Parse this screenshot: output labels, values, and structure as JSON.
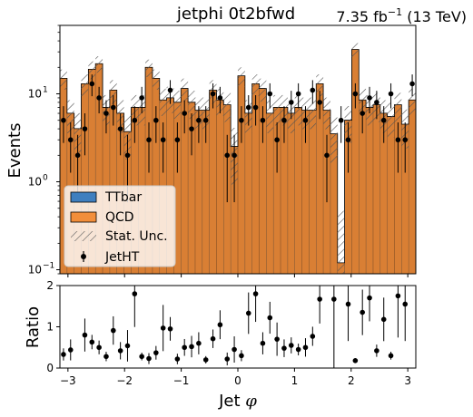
{
  "chart_data": [
    {
      "type": "histogram-stack",
      "title": "jetphi  0t2bfwd",
      "lumi_text": "7.35 fb",
      "lumi_sup": "−1",
      "lumi_tail": " (13 TeV)",
      "ylabel": "Events",
      "yscale": "log",
      "ylim": [
        0.09,
        60
      ],
      "ytick_labels": [
        "10",
        "10",
        "10"
      ],
      "ytick_exps": [
        "−1",
        "0",
        "1"
      ],
      "xlim": [
        -3.14159,
        3.14159
      ],
      "bin_edges": [
        -3.14159,
        -3.01593,
        -2.89027,
        -2.7646,
        -2.63894,
        -2.51327,
        -2.38761,
        -2.26195,
        -2.13628,
        -2.01062,
        -1.88496,
        -1.75929,
        -1.63363,
        -1.50796,
        -1.3823,
        -1.25664,
        -1.13097,
        -1.00531,
        -0.87965,
        -0.75398,
        -0.62832,
        -0.50265,
        -0.37699,
        -0.25133,
        -0.12566,
        0.0,
        0.12566,
        0.25133,
        0.37699,
        0.50265,
        0.62832,
        0.75398,
        0.87965,
        1.00531,
        1.13097,
        1.25664,
        1.3823,
        1.50796,
        1.63363,
        1.75929,
        1.88496,
        2.01062,
        2.13628,
        2.26195,
        2.38761,
        2.51327,
        2.63894,
        2.7646,
        2.89027,
        3.01593,
        3.14159
      ],
      "series": [
        {
          "name": "TTbar",
          "color": "#3f7fbf",
          "values": [
            0.02,
            0.02,
            0.02,
            0.02,
            0.02,
            0.02,
            0.02,
            0.02,
            0.02,
            0.02,
            0.02,
            0.02,
            0.02,
            0.02,
            0.02,
            0.02,
            0.02,
            0.02,
            0.02,
            0.02,
            0.02,
            0.02,
            0.02,
            0.02,
            0.02,
            0.02,
            0.02,
            0.02,
            0.02,
            0.02,
            0.02,
            0.02,
            0.02,
            0.02,
            0.02,
            0.02,
            0.02,
            0.02,
            0.02,
            0.02,
            0.02,
            0.02,
            0.02,
            0.02,
            0.02,
            0.02,
            0.02,
            0.02,
            0.02,
            0.02
          ]
        },
        {
          "name": "QCD",
          "color": "#d97f34",
          "values": [
            15,
            6,
            4,
            13,
            19,
            22,
            7,
            11,
            6,
            3.7,
            7,
            7,
            20,
            15,
            8.5,
            9,
            8,
            11.5,
            8,
            6.5,
            6.5,
            11,
            8.5,
            7.5,
            2.5,
            16,
            6,
            13,
            11.5,
            6,
            7,
            7,
            6,
            7,
            6.5,
            6.5,
            13,
            6.5,
            3.5,
            0.1,
            5,
            32,
            8.5,
            7,
            7.5,
            6,
            5.5,
            7.5,
            4.5,
            8.5
          ]
        }
      ],
      "stat_unc_label": "Stat. Unc.",
      "data_series": {
        "name": "JetHT",
        "values": [
          5,
          3,
          2,
          4,
          13,
          9,
          6,
          7,
          4,
          2,
          5,
          9,
          3,
          5,
          3,
          11,
          3,
          6,
          4,
          5,
          5,
          10,
          9,
          2,
          2,
          5,
          7,
          7,
          5,
          10,
          3,
          5,
          8,
          10,
          5,
          11,
          8,
          2,
          0,
          5,
          3,
          10,
          6,
          9,
          8,
          5,
          10,
          3,
          3,
          13
        ]
      },
      "legend_entries": [
        "TTbar",
        "QCD",
        "Stat. Unc.",
        "JetHT"
      ],
      "legend_position": "lower-left"
    },
    {
      "type": "scatter-errorbar",
      "ylabel": "Ratio",
      "ylim": [
        0,
        2
      ],
      "yticks": [
        "0",
        "1",
        "2"
      ],
      "xlabel": "Jet ",
      "xlabel_symbol": "φ",
      "xlim": [
        -3.14159,
        3.14159
      ],
      "xticks": [
        "−3",
        "−2",
        "−1",
        "0",
        "1",
        "2",
        "3"
      ],
      "xtick_values": [
        -3,
        -2,
        -1,
        0,
        1,
        2,
        3
      ],
      "ratio_values": [
        0.33,
        0.44,
        0.0,
        0.8,
        0.63,
        0.5,
        0.28,
        0.91,
        0.42,
        0.54,
        1.8,
        0.28,
        0.23,
        0.37,
        0.97,
        0.95,
        0.22,
        0.5,
        0.52,
        0.6,
        0.2,
        0.71,
        1.05,
        0.22,
        0.45,
        0.3,
        1.33,
        1.8,
        0.6,
        1.22,
        0.7,
        0.48,
        0.55,
        0.45,
        0.5,
        0.77,
        1.67,
        0.0,
        1.67,
        0.0,
        1.55,
        0.18,
        1.35,
        1.7,
        0.42,
        1.18,
        0.3,
        1.75,
        1.55,
        0.0
      ]
    }
  ]
}
